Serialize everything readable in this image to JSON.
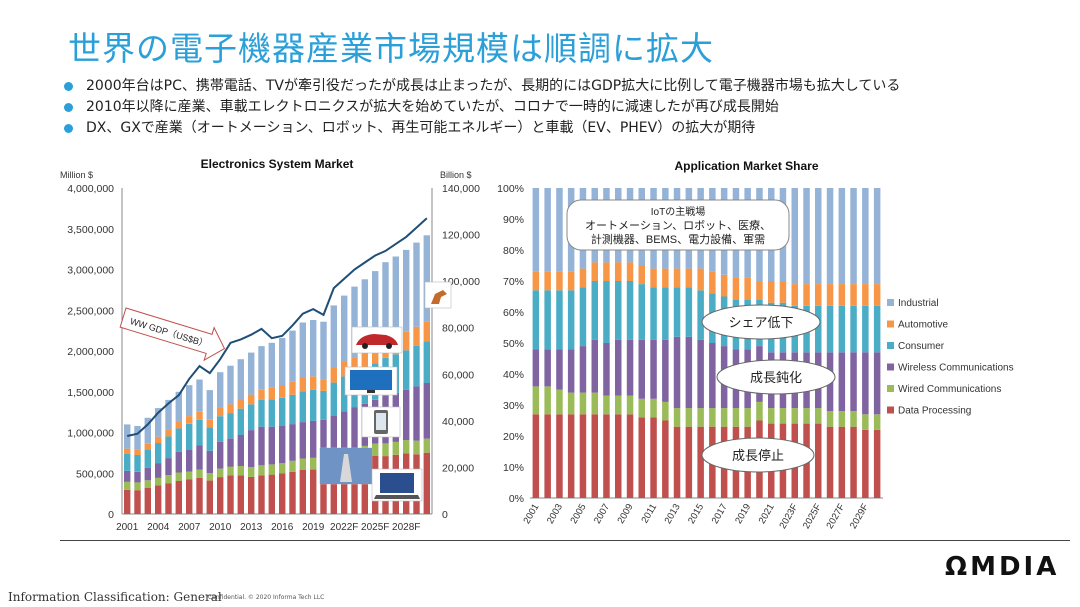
{
  "slide": {
    "title": "世界の電子機器産業市場規模は順調に拡大",
    "bullets": [
      "2000年台はPC、携帯電話、TVが牽引役だったが成長は止まったが、長期的にはGDP拡大に比例して電子機器市場も拡大している",
      "2010年以降に産業、車載エレクトロニクスが拡大を始めていたが、コロナで一時的に減速したが再び成長開始",
      "DX、GXで産業（オートメーション、ロボット、再生可能エネルギー）と車載（EV、PHEV）の拡大が期待"
    ],
    "logo": "ΩMDIA",
    "footer_classification": "Information Classification: General",
    "footer_confidential": "Confidential. © 2020 Informa Tech LLC",
    "accent_color": "#2a9fd8"
  },
  "chart_data": [
    {
      "type": "bar",
      "stacked": true,
      "title": "Electronics System Market",
      "ylabel": "Million $",
      "y2label": "Billion $",
      "ylim": [
        0,
        4000000
      ],
      "y2lim": [
        0,
        140000
      ],
      "yticks": [
        "0",
        "500,000",
        "1,000,000",
        "1,500,000",
        "2,000,000",
        "2,500,000",
        "3,000,000",
        "3,500,000",
        "4,000,000"
      ],
      "y2ticks": [
        "0",
        "20,000",
        "40,000",
        "60,000",
        "80,000",
        "100,000",
        "120,000",
        "140,000"
      ],
      "xtick_labels": [
        "2001",
        "2004",
        "2007",
        "2010",
        "2013",
        "2016",
        "2019",
        "2022F",
        "2025F",
        "2028F"
      ],
      "categories": [
        "2001",
        "2002",
        "2003",
        "2004",
        "2005",
        "2006",
        "2007",
        "2008",
        "2009",
        "2010",
        "2011",
        "2012",
        "2013",
        "2014",
        "2015",
        "2016",
        "2017",
        "2018",
        "2019",
        "2020",
        "2021",
        "2022F",
        "2023F",
        "2024F",
        "2025F",
        "2026F",
        "2027F",
        "2028F",
        "2029F",
        "2030F"
      ],
      "totals": [
        1100000,
        1080000,
        1180000,
        1300000,
        1400000,
        1500000,
        1580000,
        1650000,
        1520000,
        1740000,
        1820000,
        1900000,
        1980000,
        2060000,
        2100000,
        2160000,
        2250000,
        2350000,
        2380000,
        2360000,
        2560000,
        2680000,
        2790000,
        2880000,
        2980000,
        3090000,
        3160000,
        3240000,
        3330000,
        3420000
      ],
      "series": [
        {
          "name": "Data Processing",
          "color": "#c0504d",
          "shares": [
            0.27,
            0.27,
            0.27,
            0.27,
            0.27,
            0.27,
            0.27,
            0.27,
            0.27,
            0.26,
            0.26,
            0.25,
            0.23,
            0.23,
            0.23,
            0.23,
            0.23,
            0.23,
            0.23,
            0.25,
            0.24,
            0.24,
            0.24,
            0.24,
            0.24,
            0.23,
            0.23,
            0.23,
            0.22,
            0.22
          ]
        },
        {
          "name": "Wired Communications",
          "color": "#9bbb59",
          "shares": [
            0.09,
            0.09,
            0.08,
            0.07,
            0.07,
            0.07,
            0.06,
            0.06,
            0.06,
            0.06,
            0.06,
            0.06,
            0.06,
            0.06,
            0.06,
            0.06,
            0.06,
            0.06,
            0.06,
            0.06,
            0.05,
            0.05,
            0.05,
            0.05,
            0.05,
            0.05,
            0.05,
            0.05,
            0.05,
            0.05
          ]
        },
        {
          "name": "Wireless Communications",
          "color": "#8064a2",
          "shares": [
            0.12,
            0.12,
            0.13,
            0.14,
            0.15,
            0.17,
            0.17,
            0.18,
            0.18,
            0.19,
            0.19,
            0.2,
            0.23,
            0.23,
            0.22,
            0.21,
            0.2,
            0.19,
            0.19,
            0.18,
            0.18,
            0.18,
            0.18,
            0.18,
            0.18,
            0.19,
            0.19,
            0.19,
            0.2,
            0.2
          ]
        },
        {
          "name": "Consumer",
          "color": "#4bacc6",
          "shares": [
            0.19,
            0.19,
            0.19,
            0.19,
            0.19,
            0.19,
            0.2,
            0.19,
            0.19,
            0.18,
            0.17,
            0.17,
            0.16,
            0.16,
            0.16,
            0.16,
            0.16,
            0.16,
            0.16,
            0.15,
            0.16,
            0.16,
            0.15,
            0.15,
            0.15,
            0.15,
            0.15,
            0.15,
            0.15,
            0.15
          ]
        },
        {
          "name": "Automotive",
          "color": "#f79646",
          "shares": [
            0.06,
            0.06,
            0.06,
            0.06,
            0.06,
            0.06,
            0.06,
            0.06,
            0.06,
            0.06,
            0.06,
            0.06,
            0.06,
            0.06,
            0.07,
            0.07,
            0.07,
            0.07,
            0.07,
            0.06,
            0.07,
            0.07,
            0.07,
            0.07,
            0.07,
            0.07,
            0.07,
            0.07,
            0.07,
            0.07
          ]
        },
        {
          "name": "Industrial",
          "color": "#95b3d7",
          "shares": [
            0.27,
            0.27,
            0.27,
            0.27,
            0.26,
            0.24,
            0.24,
            0.24,
            0.24,
            0.25,
            0.26,
            0.26,
            0.26,
            0.26,
            0.26,
            0.27,
            0.28,
            0.29,
            0.29,
            0.3,
            0.3,
            0.3,
            0.31,
            0.31,
            0.31,
            0.31,
            0.31,
            0.31,
            0.31,
            0.31
          ]
        }
      ],
      "gdp_line": {
        "name": "WW GDP（US$B）",
        "color": "#1f4e79",
        "years": [
          "2001",
          "2002",
          "2003",
          "2004",
          "2005",
          "2006",
          "2007",
          "2008",
          "2009",
          "2010",
          "2011",
          "2012",
          "2013",
          "2014",
          "2015",
          "2016",
          "2017",
          "2018",
          "2019",
          "2020",
          "2021",
          "2022F",
          "2023F",
          "2024F",
          "2025F",
          "2026F",
          "2027F",
          "2028F",
          "2029F",
          "2030F"
        ],
        "values": [
          33500,
          34500,
          38500,
          43500,
          47500,
          51000,
          58000,
          63500,
          60500,
          66500,
          73500,
          75000,
          77000,
          79500,
          75500,
          76500,
          81000,
          86000,
          88000,
          85500,
          97000,
          101000,
          105000,
          108000,
          111000,
          113000,
          116000,
          119000,
          123000,
          127000
        ]
      },
      "annotation": "WW GDP（US$B）",
      "icons": [
        "industrial-robot-icon",
        "car-icon",
        "tv-icon",
        "smartphone-icon",
        "cell-tower-icon",
        "laptop-icon"
      ]
    },
    {
      "type": "bar",
      "stacked": true,
      "percent": true,
      "title": "Application Market Share",
      "ylim": [
        0,
        100
      ],
      "yticks": [
        "0%",
        "10%",
        "20%",
        "30%",
        "40%",
        "50%",
        "60%",
        "70%",
        "80%",
        "90%",
        "100%"
      ],
      "xtick_labels": [
        "2001",
        "2003",
        "2005",
        "2007",
        "2009",
        "2011",
        "2013",
        "2015",
        "2017",
        "2019",
        "2021",
        "2023F",
        "2025F",
        "2027F",
        "2029F"
      ],
      "legend_position": "right",
      "legend": [
        "Industrial",
        "Automotive",
        "Consumer",
        "Wireless Communications",
        "Wired Communications",
        "Data Processing"
      ],
      "annotations": [
        "IoTの主戦場\nオートメーション、ロボット、医療、\n計測機器、BEMS、電力設備、軍需",
        "シェア低下",
        "成長鈍化",
        "成長停止"
      ]
    }
  ]
}
